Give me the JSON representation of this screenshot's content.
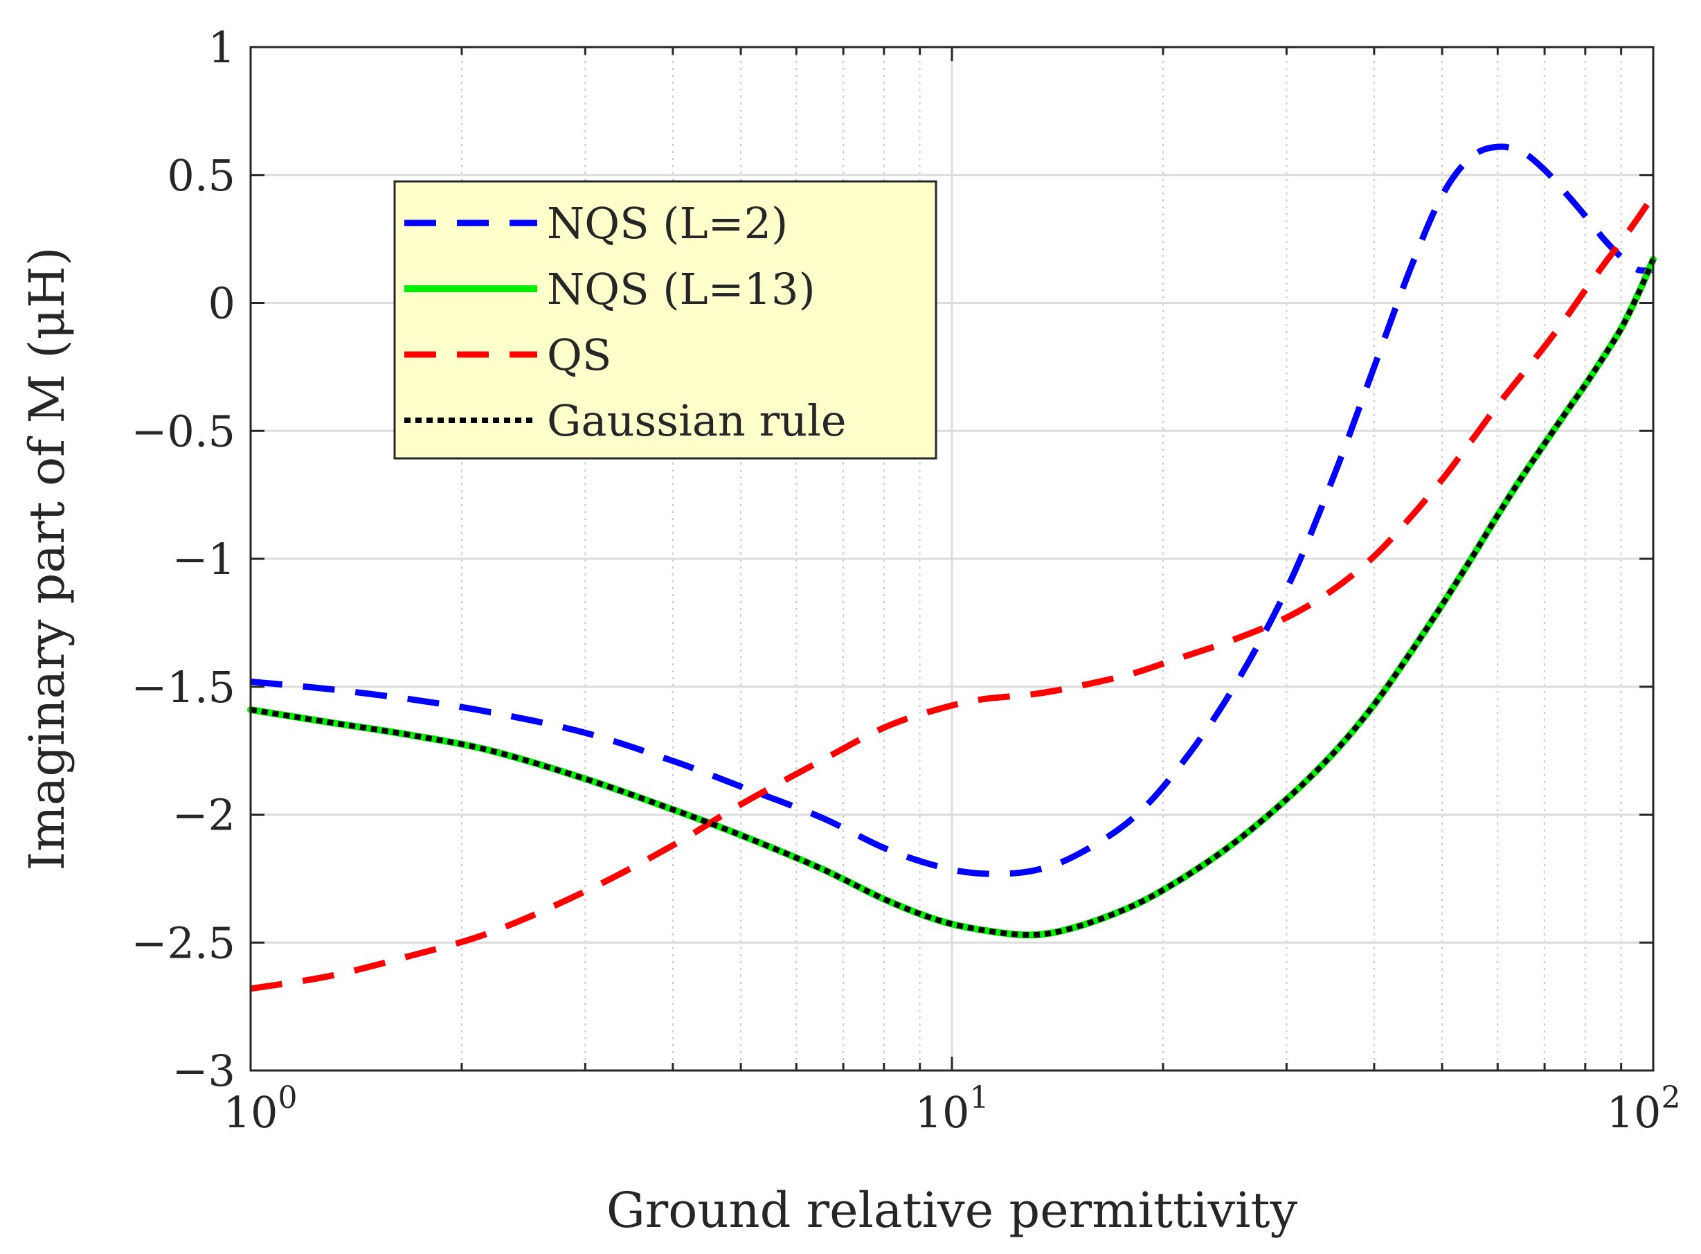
{
  "chart_data": {
    "type": "line",
    "title": "",
    "xlabel": "Ground relative permittivity",
    "ylabel": "Imaginary part of M (μH)",
    "xscale": "log",
    "xlim": [
      1,
      100
    ],
    "ylim": [
      -3,
      1
    ],
    "yticks": [
      1,
      0.5,
      0,
      -0.5,
      -1,
      -1.5,
      -2,
      -2.5,
      -3
    ],
    "ytick_labels": [
      "1",
      "0.5",
      "0",
      "−0.5",
      "−1",
      "−1.5",
      "−2",
      "−2.5",
      "−3"
    ],
    "xticks": [
      1,
      10,
      100
    ],
    "xtick_labels": [
      {
        "base": "10",
        "exp": "0"
      },
      {
        "base": "10",
        "exp": "1"
      },
      {
        "base": "10",
        "exp": "2"
      }
    ],
    "grid": true,
    "legend_position": "upper-left-center",
    "series": [
      {
        "name": "NQS (L=2)",
        "color": "#0000ff",
        "style": "dashed",
        "x": [
          1,
          1.3,
          1.7,
          2.2,
          3,
          4,
          5,
          6.5,
          8,
          9.5,
          11,
          13,
          15,
          18,
          21,
          25,
          30,
          35,
          40,
          45,
          50,
          55,
          60,
          65,
          70,
          75,
          80,
          85,
          90,
          95,
          100
        ],
        "y": [
          -1.48,
          -1.51,
          -1.55,
          -1.6,
          -1.68,
          -1.79,
          -1.89,
          -2.01,
          -2.13,
          -2.2,
          -2.23,
          -2.22,
          -2.16,
          -2.02,
          -1.82,
          -1.52,
          -1.12,
          -0.68,
          -0.25,
          0.13,
          0.42,
          0.57,
          0.61,
          0.59,
          0.52,
          0.43,
          0.34,
          0.25,
          0.18,
          0.13,
          0.13
        ]
      },
      {
        "name": "NQS (L=13)",
        "color": "#00ee00",
        "style": "solid",
        "x": [
          1,
          1.3,
          1.7,
          2.2,
          3,
          4,
          5,
          6.5,
          8,
          9.5,
          11,
          13,
          15,
          18,
          21,
          25,
          30,
          35,
          40,
          45,
          50,
          55,
          60,
          65,
          70,
          75,
          80,
          85,
          90,
          95,
          100
        ],
        "y": [
          -1.59,
          -1.64,
          -1.69,
          -1.75,
          -1.86,
          -1.98,
          -2.08,
          -2.21,
          -2.33,
          -2.41,
          -2.45,
          -2.47,
          -2.44,
          -2.36,
          -2.26,
          -2.12,
          -1.94,
          -1.76,
          -1.57,
          -1.37,
          -1.18,
          -1.0,
          -0.83,
          -0.68,
          -0.55,
          -0.43,
          -0.32,
          -0.21,
          -0.1,
          0.03,
          0.17
        ]
      },
      {
        "name": "QS",
        "color": "#ff0000",
        "style": "dashed",
        "x": [
          1,
          1.3,
          1.7,
          2.2,
          3,
          4,
          5,
          6.5,
          8,
          9.5,
          11,
          13,
          15,
          18,
          21,
          25,
          30,
          35,
          40,
          45,
          50,
          55,
          60,
          65,
          70,
          75,
          80,
          85,
          90,
          95,
          100
        ],
        "y": [
          -2.68,
          -2.63,
          -2.55,
          -2.46,
          -2.3,
          -2.12,
          -1.96,
          -1.79,
          -1.66,
          -1.59,
          -1.55,
          -1.53,
          -1.5,
          -1.45,
          -1.39,
          -1.32,
          -1.23,
          -1.12,
          -0.99,
          -0.84,
          -0.69,
          -0.54,
          -0.4,
          -0.28,
          -0.17,
          -0.06,
          0.05,
          0.15,
          0.24,
          0.33,
          0.42
        ]
      },
      {
        "name": "Gaussian rule",
        "color": "#000000",
        "style": "dotted",
        "x": [
          1,
          1.3,
          1.7,
          2.2,
          3,
          4,
          5,
          6.5,
          8,
          9.5,
          11,
          13,
          15,
          18,
          21,
          25,
          30,
          35,
          40,
          45,
          50,
          55,
          60,
          65,
          70,
          75,
          80,
          85,
          90,
          95,
          100
        ],
        "y": [
          -1.59,
          -1.64,
          -1.69,
          -1.75,
          -1.86,
          -1.98,
          -2.08,
          -2.21,
          -2.33,
          -2.41,
          -2.45,
          -2.47,
          -2.44,
          -2.36,
          -2.26,
          -2.12,
          -1.94,
          -1.76,
          -1.57,
          -1.37,
          -1.18,
          -1.0,
          -0.83,
          -0.68,
          -0.55,
          -0.43,
          -0.32,
          -0.21,
          -0.1,
          0.03,
          0.17
        ]
      }
    ]
  }
}
